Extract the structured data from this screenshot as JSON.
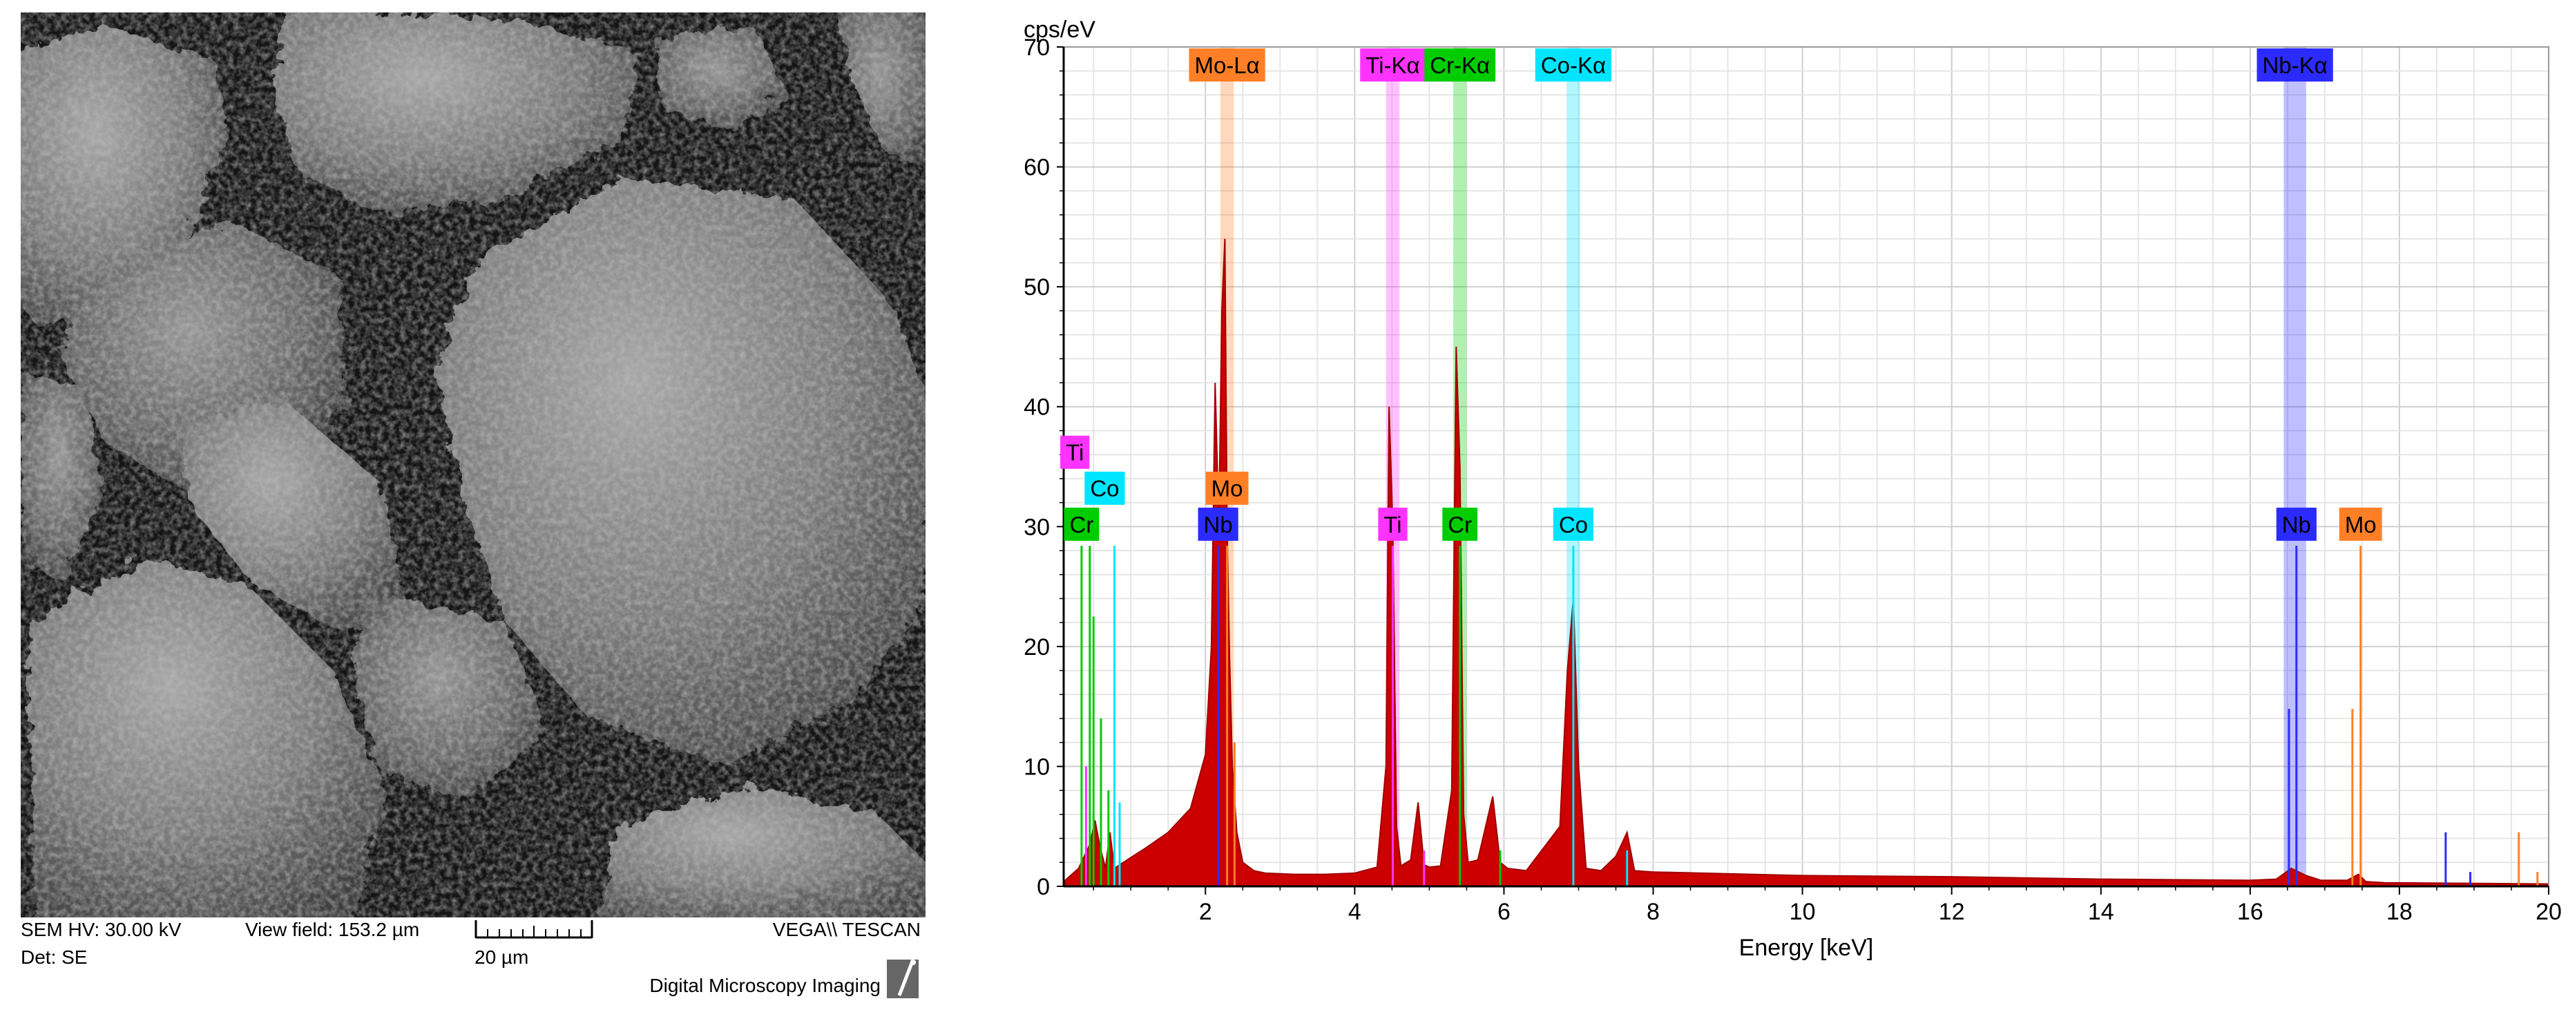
{
  "sem": {
    "hv": "SEM HV: 30.00 kV",
    "view_field": "View field: 153.2 µm",
    "brand": "VEGA\\\\ TESCAN",
    "det": "Det: SE",
    "scale": "20 µm",
    "credit": "Digital Microscopy Imaging"
  },
  "chart_data": {
    "type": "area",
    "title": "",
    "xlabel": "Energy [keV]",
    "ylabel": "cps/eV",
    "xlim": [
      0.1,
      20
    ],
    "ylim": [
      0,
      70
    ],
    "xticks": [
      2,
      4,
      6,
      8,
      10,
      12,
      14,
      16,
      18,
      20
    ],
    "yticks": [
      0,
      10,
      20,
      30,
      40,
      50,
      60,
      70
    ],
    "grid": true,
    "series": [
      {
        "color": "#c00000",
        "x": [
          0.12,
          0.3,
          0.45,
          0.52,
          0.58,
          0.66,
          0.72,
          0.78,
          0.9,
          1.2,
          1.5,
          1.8,
          2.0,
          2.08,
          2.13,
          2.18,
          2.22,
          2.26,
          2.29,
          2.32,
          2.36,
          2.42,
          2.5,
          2.65,
          2.8,
          3.2,
          3.6,
          4.0,
          4.3,
          4.42,
          4.46,
          4.51,
          4.56,
          4.62,
          4.75,
          4.85,
          4.93,
          5.0,
          5.15,
          5.3,
          5.36,
          5.41,
          5.46,
          5.52,
          5.65,
          5.85,
          5.95,
          6.05,
          6.3,
          6.75,
          6.85,
          6.93,
          7.0,
          7.1,
          7.3,
          7.5,
          7.65,
          7.75,
          8.0,
          10.0,
          12.0,
          14.0,
          16.0,
          16.35,
          16.55,
          16.75,
          16.95,
          17.3,
          17.45,
          17.55,
          17.8,
          20.0
        ],
        "y": [
          0.5,
          1.5,
          3.5,
          5.5,
          3.5,
          1.5,
          4.5,
          1.5,
          2.0,
          3.2,
          4.5,
          6.5,
          11.0,
          20.0,
          42.0,
          30.0,
          48.0,
          54.0,
          30.0,
          20.0,
          10.0,
          4.5,
          2.0,
          1.3,
          1.1,
          1.0,
          1.0,
          1.1,
          1.6,
          10.0,
          40.0,
          30.0,
          5.0,
          1.7,
          2.2,
          7.0,
          1.8,
          1.6,
          1.7,
          8.0,
          45.0,
          35.0,
          6.0,
          2.0,
          2.2,
          7.5,
          2.0,
          1.5,
          1.3,
          5.0,
          18.0,
          24.0,
          10.0,
          1.5,
          1.3,
          2.5,
          4.5,
          1.3,
          1.2,
          0.9,
          0.8,
          0.6,
          0.5,
          0.6,
          1.5,
          0.9,
          0.5,
          0.5,
          1.0,
          0.4,
          0.3,
          0.2
        ]
      }
    ],
    "lines": [
      {
        "x": 0.34,
        "y": 28.4,
        "color": "#00cc00"
      },
      {
        "x": 0.4,
        "y": 10,
        "color": "#ff33ff"
      },
      {
        "x": 0.45,
        "y": 28.4,
        "color": "#00cc00"
      },
      {
        "x": 0.5,
        "y": 22.5,
        "color": "#00cc00"
      },
      {
        "x": 0.6,
        "y": 14,
        "color": "#00cc00"
      },
      {
        "x": 0.7,
        "y": 8,
        "color": "#00cc00"
      },
      {
        "x": 0.78,
        "y": 28.4,
        "color": "#00e5ff"
      },
      {
        "x": 0.85,
        "y": 7,
        "color": "#00e5ff"
      },
      {
        "x": 2.17,
        "y": 28.4,
        "color": "#2b2bff"
      },
      {
        "x": 2.29,
        "y": 28.4,
        "color": "#ff7f27"
      },
      {
        "x": 2.39,
        "y": 12,
        "color": "#ff7f27"
      },
      {
        "x": 4.51,
        "y": 28.4,
        "color": "#ff33ff"
      },
      {
        "x": 4.93,
        "y": 3,
        "color": "#ff33ff"
      },
      {
        "x": 5.41,
        "y": 28.4,
        "color": "#00cc00"
      },
      {
        "x": 5.95,
        "y": 3,
        "color": "#00cc00"
      },
      {
        "x": 6.93,
        "y": 28.4,
        "color": "#00e5ff"
      },
      {
        "x": 7.65,
        "y": 3,
        "color": "#00e5ff"
      },
      {
        "x": 16.52,
        "y": 14.8,
        "color": "#2b2bff"
      },
      {
        "x": 16.62,
        "y": 28.4,
        "color": "#2b2bff"
      },
      {
        "x": 17.37,
        "y": 14.8,
        "color": "#ff7f27"
      },
      {
        "x": 17.48,
        "y": 28.4,
        "color": "#ff7f27"
      },
      {
        "x": 18.62,
        "y": 4.5,
        "color": "#2b2bff"
      },
      {
        "x": 18.95,
        "y": 1.2,
        "color": "#2b2bff"
      },
      {
        "x": 19.6,
        "y": 4.5,
        "color": "#ff7f27"
      },
      {
        "x": 19.85,
        "y": 1.2,
        "color": "#ff7f27"
      }
    ],
    "bands": [
      {
        "x": 2.29,
        "width": 0.18,
        "color": "#ff7f27"
      },
      {
        "x": 4.51,
        "width": 0.18,
        "color": "#ff33ff"
      },
      {
        "x": 5.41,
        "width": 0.18,
        "color": "#00cc00"
      },
      {
        "x": 6.93,
        "width": 0.18,
        "color": "#00e5ff"
      },
      {
        "x": 16.6,
        "width": 0.3,
        "color": "#2b2bff"
      }
    ],
    "labels": [
      {
        "text": "Mo-Lα",
        "x": 2.29,
        "y": 68.5,
        "color": "#ff7f27"
      },
      {
        "text": "Ti-Kα",
        "x": 4.51,
        "y": 68.5,
        "color": "#ff33ff"
      },
      {
        "text": "Cr-Kα",
        "x": 5.41,
        "y": 68.5,
        "color": "#00cc00"
      },
      {
        "text": "Co-Kα",
        "x": 6.93,
        "y": 68.5,
        "color": "#00e5ff"
      },
      {
        "text": "Nb-Kα",
        "x": 16.6,
        "y": 68.5,
        "color": "#2b2bff"
      },
      {
        "text": "Ti",
        "x": 0.25,
        "y": 36.2,
        "color": "#ff33ff"
      },
      {
        "text": "Co",
        "x": 0.65,
        "y": 33.2,
        "color": "#00e5ff"
      },
      {
        "text": "Mo",
        "x": 2.29,
        "y": 33.2,
        "color": "#ff7f27"
      },
      {
        "text": "Cr",
        "x": 0.34,
        "y": 30.2,
        "color": "#00cc00"
      },
      {
        "text": "Nb",
        "x": 2.17,
        "y": 30.2,
        "color": "#2b2bff"
      },
      {
        "text": "Ti",
        "x": 4.51,
        "y": 30.2,
        "color": "#ff33ff"
      },
      {
        "text": "Cr",
        "x": 5.41,
        "y": 30.2,
        "color": "#00cc00"
      },
      {
        "text": "Co",
        "x": 6.93,
        "y": 30.2,
        "color": "#00e5ff"
      },
      {
        "text": "Nb",
        "x": 16.62,
        "y": 30.2,
        "color": "#2b2bff"
      },
      {
        "text": "Mo",
        "x": 17.48,
        "y": 30.2,
        "color": "#ff7f27"
      }
    ]
  }
}
